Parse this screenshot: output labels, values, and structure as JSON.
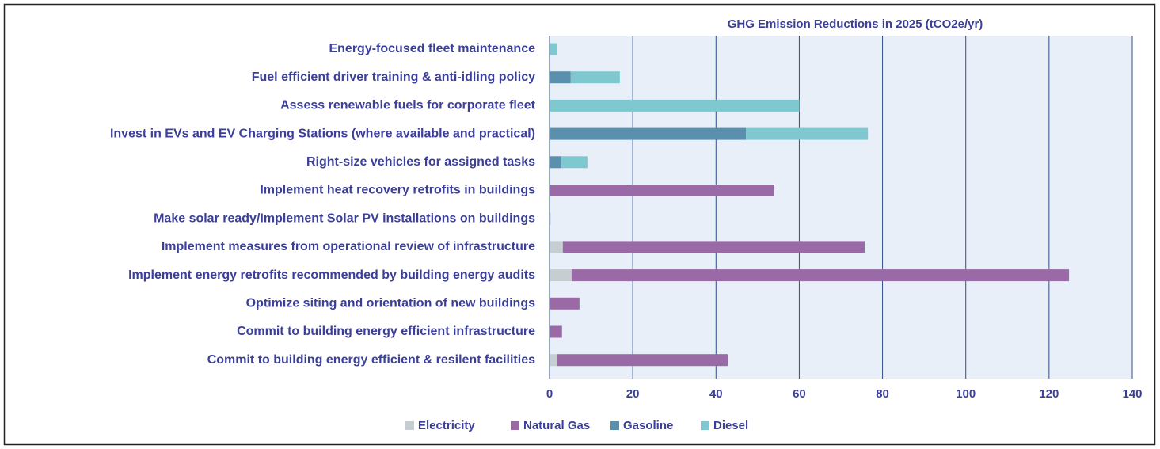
{
  "chart_data": {
    "type": "stacked-bar-horizontal",
    "title": "GHG Emission Reductions in 2025 (tCO2e/yr)",
    "categories": [
      "Energy-focused fleet maintenance",
      "Fuel efficient driver training & anti-idling policy",
      "Assess renewable fuels for corporate fleet",
      "Invest in EVs and EV Charging Stations (where available and practical)",
      "Right-size vehicles for assigned tasks",
      "Implement heat recovery retrofits in buildings",
      "Make solar ready/Implement Solar PV installations on buildings",
      "Implement measures from operational review of infrastructure",
      "Implement energy retrofits recommended by building energy audits",
      "Optimize siting and orientation of new buildings",
      "Commit to building energy efficient infrastructure",
      "Commit to building energy efficient & resilent facilities"
    ],
    "series": [
      {
        "name": "Electricity",
        "color": "#c7ced1",
        "values": [
          0,
          0,
          0,
          0,
          0,
          0,
          0.3,
          3.2,
          5.3,
          0,
          0,
          1.9
        ]
      },
      {
        "name": "Natural Gas",
        "color": "#9a6aa6",
        "values": [
          0,
          0,
          0,
          0,
          0,
          54,
          0,
          72.5,
          119.5,
          7.2,
          3,
          40.9
        ]
      },
      {
        "name": "Gasoline",
        "color": "#5b8fae",
        "values": [
          0,
          5.1,
          0,
          47.2,
          2.9,
          0,
          0,
          0,
          0,
          0,
          0,
          0
        ]
      },
      {
        "name": "Diesel",
        "color": "#7fc8d0",
        "values": [
          1.9,
          11.8,
          60,
          29.3,
          6.2,
          0,
          0,
          0,
          0,
          0,
          0,
          0
        ]
      }
    ],
    "xlim": [
      0,
      140
    ],
    "xticks": [
      0,
      20,
      40,
      60,
      80,
      100,
      120,
      140
    ],
    "grid": true,
    "legend": "bottom"
  }
}
